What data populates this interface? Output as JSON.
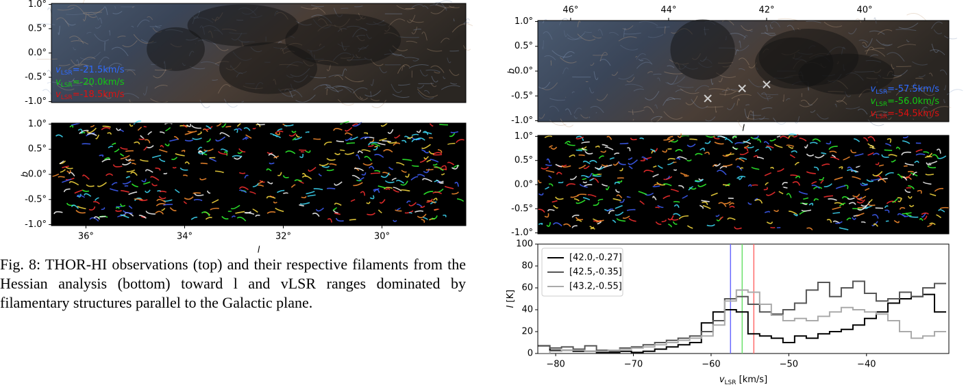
{
  "chart_data": [
    {
      "type": "image",
      "style": "emission",
      "xlim": [
        36.7,
        28.3
      ],
      "ylim": [
        -1.02,
        1.02
      ],
      "yticks": [
        {
          "value": 1.0,
          "label": "1.0°"
        },
        {
          "value": 0.5,
          "label": "0.5°"
        },
        {
          "value": 0.0,
          "label": "0.0°"
        },
        {
          "value": -0.5,
          "label": "-0.5°"
        },
        {
          "value": -1.0,
          "label": "-1.0°"
        }
      ],
      "annotations": [
        {
          "symbol": "v",
          "subscript": "LSR",
          "text": "=-21.5km/s",
          "color": "#2f6bff"
        },
        {
          "symbol": "v",
          "subscript": "LSR",
          "text": "=-20.0km/s",
          "color": "#12c912"
        },
        {
          "symbol": "v",
          "subscript": "LSR",
          "text": "=-18.5km/s",
          "color": "#e01010"
        }
      ],
      "annotation_corner": "lower left"
    },
    {
      "type": "image",
      "style": "filaments",
      "xlim": [
        36.7,
        28.3
      ],
      "ylim": [
        -1.02,
        1.02
      ],
      "yticks": [
        {
          "value": 1.0,
          "label": "1.0°"
        },
        {
          "value": 0.5,
          "label": "0.5°"
        },
        {
          "value": 0.0,
          "label": "0.0°"
        },
        {
          "value": -0.5,
          "label": "-0.5°"
        },
        {
          "value": -1.0,
          "label": "-1.0°"
        }
      ],
      "xticks": [
        {
          "value": 36,
          "label": "36°"
        },
        {
          "value": 34,
          "label": "34°"
        },
        {
          "value": 32,
          "label": "32°"
        },
        {
          "value": 30,
          "label": "30°"
        }
      ],
      "xtick_side": "bottom",
      "xlabel": "l",
      "ylabel": "b"
    },
    {
      "type": "image",
      "style": "emission",
      "xlim": [
        46.67,
        38.28
      ],
      "ylim": [
        -1.02,
        1.02
      ],
      "yticks": [
        {
          "value": 1.0,
          "label": "1.0°"
        },
        {
          "value": 0.5,
          "label": "0.5°"
        },
        {
          "value": 0.0,
          "label": "0.0°"
        },
        {
          "value": -0.5,
          "label": "-0.5°"
        },
        {
          "value": -1.0,
          "label": "-1.0°"
        }
      ],
      "xticks": [
        {
          "value": 46,
          "label": "46°"
        },
        {
          "value": 44,
          "label": "44°"
        },
        {
          "value": 42,
          "label": "42°"
        },
        {
          "value": 40,
          "label": "40°"
        }
      ],
      "xtick_side": "top",
      "xlabel": "l",
      "ylabel": "b",
      "markers": {
        "l": [
          42.0,
          42.5,
          43.2
        ],
        "b": [
          -0.27,
          -0.35,
          -0.55
        ],
        "color": "#cfcfcf"
      },
      "annotations": [
        {
          "symbol": "v",
          "subscript": "LSR",
          "text": "=-57.5km/s",
          "color": "#2f6bff"
        },
        {
          "symbol": "v",
          "subscript": "LSR",
          "text": "=-56.0km/s",
          "color": "#12c912"
        },
        {
          "symbol": "v",
          "subscript": "LSR",
          "text": "=-54.5km/s",
          "color": "#e01010"
        }
      ],
      "annotation_corner": "lower right"
    },
    {
      "type": "image",
      "style": "filaments",
      "xlim": [
        46.67,
        38.28
      ],
      "ylim": [
        -1.02,
        1.02
      ],
      "yticks": [
        {
          "value": 1.0,
          "label": "1.0°"
        },
        {
          "value": 0.5,
          "label": "0.5°"
        },
        {
          "value": 0.0,
          "label": "0.0°"
        },
        {
          "value": -0.5,
          "label": "-0.5°"
        },
        {
          "value": -1.0,
          "label": "-1.0°"
        }
      ]
    },
    {
      "type": "step",
      "xlim": [
        -82.3,
        -29.4
      ],
      "ylim": [
        0,
        100
      ],
      "xticks": [
        {
          "value": -80,
          "label": "−80"
        },
        {
          "value": -70,
          "label": "−70"
        },
        {
          "value": -60,
          "label": "−60"
        },
        {
          "value": -50,
          "label": "−50"
        },
        {
          "value": -40,
          "label": "−40"
        }
      ],
      "yticks": [
        0,
        20,
        40,
        60,
        80,
        100
      ],
      "xlabel": {
        "symbol": "v",
        "subscript": "LSR",
        "text": " [km/s]"
      },
      "ylabel": {
        "symbol": "I",
        "text": " [K]"
      },
      "legend": "upper left",
      "vlines": [
        {
          "value": -57.5,
          "color": "#6b6bff"
        },
        {
          "value": -56.0,
          "color": "#6be06b"
        },
        {
          "value": -54.5,
          "color": "#ff6b6b"
        }
      ],
      "x": [
        -81.5,
        -80,
        -78.5,
        -77,
        -75.5,
        -74,
        -72.5,
        -71,
        -69.5,
        -68,
        -66.5,
        -65,
        -63.5,
        -62,
        -60.5,
        -59,
        -57.5,
        -56,
        -54.5,
        -53,
        -51.5,
        -50,
        -48.5,
        -47,
        -45.5,
        -44,
        -42.5,
        -41,
        -39.5,
        -38,
        -36.5,
        -35,
        -33.5,
        -32,
        -30.5
      ],
      "series": [
        {
          "name": "[42.0,-0.27]",
          "color": "#000000",
          "values": [
            7,
            3,
            3,
            2,
            2,
            1,
            1,
            2,
            1,
            2,
            4,
            6,
            8,
            10,
            28,
            38,
            40,
            38,
            18,
            16,
            14,
            10,
            16,
            14,
            18,
            20,
            22,
            26,
            32,
            38,
            46,
            50,
            52,
            54,
            38
          ]
        },
        {
          "name": "[42.5,-0.35]",
          "color": "#555555",
          "values": [
            7,
            5,
            6,
            4,
            7,
            3,
            2,
            5,
            6,
            8,
            10,
            12,
            14,
            16,
            20,
            30,
            50,
            52,
            45,
            38,
            36,
            40,
            46,
            58,
            65,
            52,
            60,
            66,
            55,
            48,
            50,
            56,
            52,
            60,
            64
          ]
        },
        {
          "name": "[43.2,-0.55]",
          "color": "#aaaaaa",
          "values": [
            0,
            2,
            3,
            3,
            2,
            2,
            3,
            4,
            5,
            6,
            8,
            10,
            12,
            14,
            16,
            26,
            48,
            58,
            56,
            45,
            35,
            30,
            32,
            30,
            34,
            38,
            42,
            40,
            38,
            36,
            30,
            20,
            14,
            16,
            20
          ]
        }
      ]
    }
  ],
  "caption": "Fig. 8: THOR-HI observations (top) and their respective filaments from the Hessian analysis (bottom) toward l and vLSR ranges dominated by filamentary structures parallel to the Galactic plane."
}
